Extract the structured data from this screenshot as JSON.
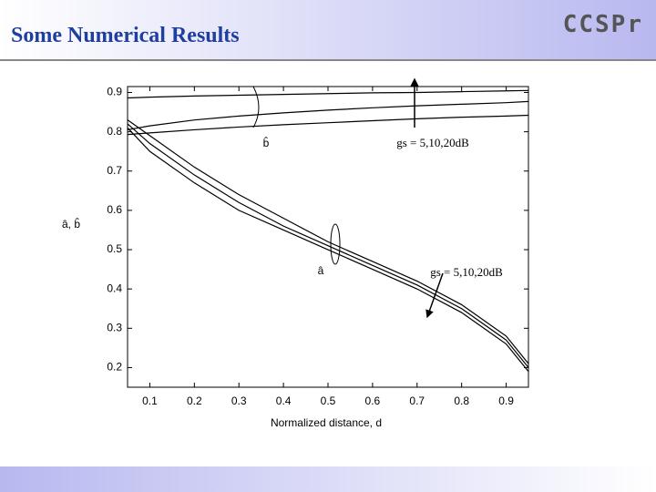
{
  "header": {
    "title": "Some Numerical Results",
    "logo": "CCSPr"
  },
  "chart_data": {
    "type": "line",
    "x": [
      0.05,
      0.1,
      0.2,
      0.3,
      0.4,
      0.5,
      0.6,
      0.7,
      0.8,
      0.9,
      0.95
    ],
    "series": [
      {
        "color": "#000000",
        "values": [
          0.886,
          0.888,
          0.891,
          0.893,
          0.895,
          0.897,
          0.899,
          0.9,
          0.902,
          0.904,
          0.905
        ]
      },
      {
        "color": "#000000",
        "values": [
          0.805,
          0.815,
          0.83,
          0.84,
          0.848,
          0.855,
          0.861,
          0.866,
          0.87,
          0.874,
          0.877
        ]
      },
      {
        "color": "#000000",
        "values": [
          0.793,
          0.797,
          0.805,
          0.812,
          0.818,
          0.823,
          0.828,
          0.833,
          0.837,
          0.84,
          0.842
        ]
      },
      {
        "color": "#000000",
        "values": [
          0.83,
          0.79,
          0.71,
          0.64,
          0.58,
          0.52,
          0.47,
          0.42,
          0.36,
          0.28,
          0.21
        ]
      },
      {
        "color": "#000000",
        "values": [
          0.82,
          0.77,
          0.69,
          0.62,
          0.56,
          0.51,
          0.46,
          0.41,
          0.35,
          0.27,
          0.2
        ]
      },
      {
        "color": "#000000",
        "values": [
          0.81,
          0.75,
          0.67,
          0.6,
          0.55,
          0.5,
          0.45,
          0.4,
          0.34,
          0.26,
          0.19
        ]
      }
    ],
    "xlim": [
      0.05,
      0.95
    ],
    "ylim": [
      0.15,
      0.915
    ],
    "xticks": [
      0.1,
      0.2,
      0.3,
      0.4,
      0.5,
      0.6,
      0.7,
      0.8,
      0.9
    ],
    "yticks": [
      0.2,
      0.3,
      0.4,
      0.5,
      0.6,
      0.7,
      0.8,
      0.9
    ],
    "xlabel": "Normalized distance, d",
    "ylabel": "â, b̂",
    "annotations": [
      "b̂",
      "gs = 5,10,20dB",
      "â",
      "gs = 5,10,20dB"
    ]
  }
}
